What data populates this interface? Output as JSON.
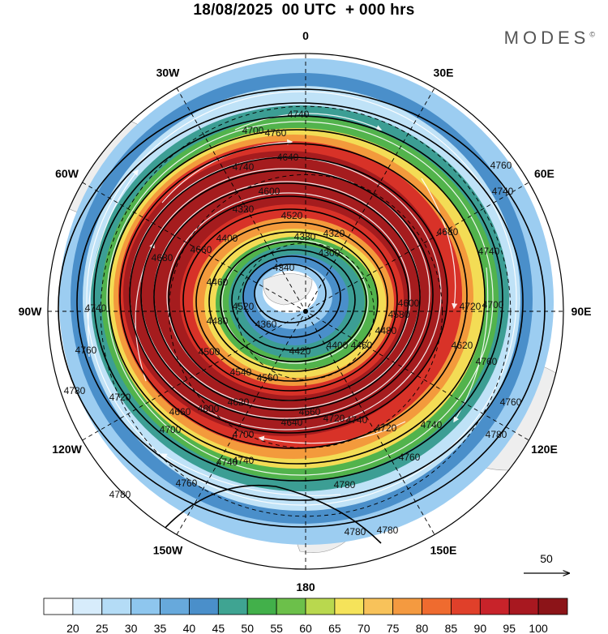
{
  "title": "18/08/2025  00 UTC  + 000 hrs",
  "brand": "MODES",
  "brand_mark": "©",
  "longitude_labels": [
    {
      "text": "0",
      "lon": 0
    },
    {
      "text": "30E",
      "lon": 30
    },
    {
      "text": "60E",
      "lon": 60
    },
    {
      "text": "90E",
      "lon": 90
    },
    {
      "text": "120E",
      "lon": 120
    },
    {
      "text": "150E",
      "lon": 150
    },
    {
      "text": "180",
      "lon": 180
    },
    {
      "text": "150W",
      "lon": -150
    },
    {
      "text": "120W",
      "lon": -120
    },
    {
      "text": "90W",
      "lon": -90
    },
    {
      "text": "60W",
      "lon": -60
    },
    {
      "text": "30W",
      "lon": -30
    }
  ],
  "contour_labels": [
    "4300",
    "4320",
    "4340",
    "4360",
    "4380",
    "4400",
    "4420",
    "4440",
    "4460",
    "4480",
    "4500",
    "4520",
    "4540",
    "4560",
    "4580",
    "4600",
    "4620",
    "4640",
    "4660",
    "4680",
    "4700",
    "4720",
    "4740",
    "4760",
    "4780"
  ],
  "vector_reference": {
    "value": "50"
  },
  "colorbar": {
    "labels": [
      "20",
      "25",
      "30",
      "35",
      "40",
      "45",
      "50",
      "55",
      "60",
      "65",
      "70",
      "75",
      "80",
      "85",
      "90",
      "95",
      "100"
    ],
    "colors": [
      "#ffffff",
      "#d7ecfb",
      "#b4dcf6",
      "#8ec6ee",
      "#67a9dc",
      "#4a8fca",
      "#3fa492",
      "#42b04a",
      "#6cc04a",
      "#b9d84e",
      "#f5e35a",
      "#f8c25a",
      "#f49a40",
      "#ef6b2f",
      "#e0402a",
      "#c8232a",
      "#a81820",
      "#8c1418"
    ]
  },
  "colors": {
    "land": "#eeeeee",
    "ring_core": "#a51c1e",
    "ring_red": "#d83228",
    "ring_orange": "#f39a3c",
    "ring_yellow": "#f3dc55",
    "ring_green": "#52b34c",
    "ring_teal": "#3c9e94",
    "ring_blue": "#4a8fca",
    "ring_lightblue": "#9ccdf1"
  }
}
